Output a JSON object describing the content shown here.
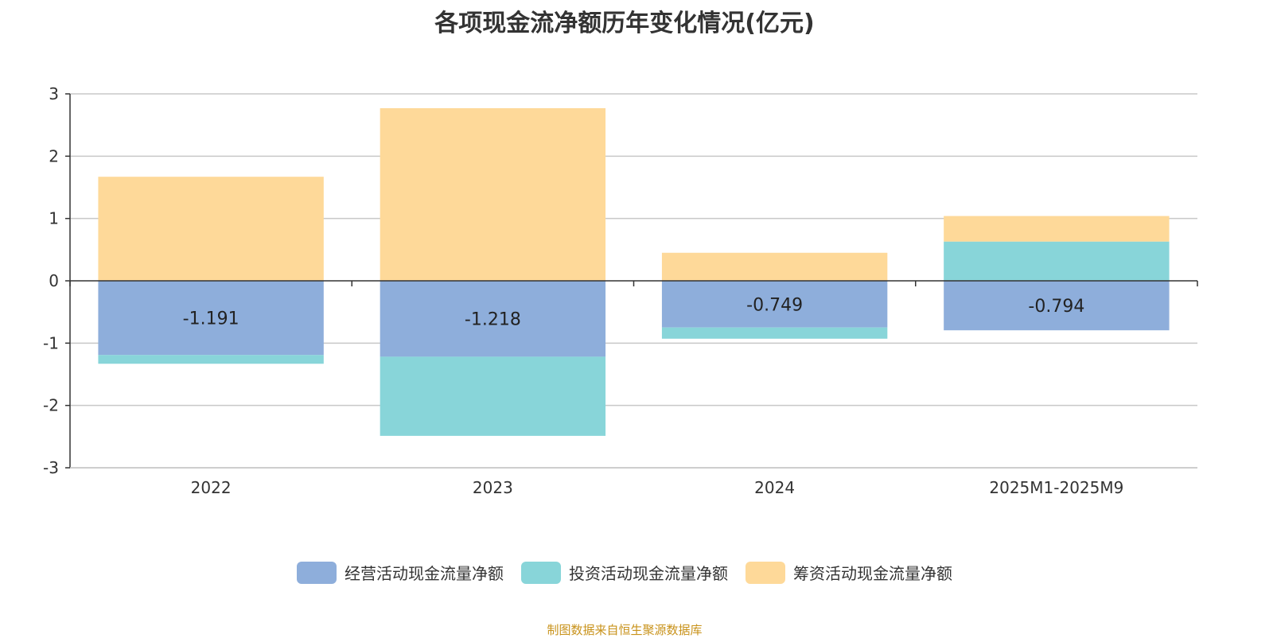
{
  "chart_data": {
    "type": "bar",
    "stacked": true,
    "title": "各项现金流净额历年变化情况(亿元)",
    "categories": [
      "2022",
      "2023",
      "2024",
      "2025M1-2025M9"
    ],
    "series": [
      {
        "name": "经营活动现金流量净额",
        "color": "#8eaedb",
        "values": [
          -1.191,
          -1.218,
          -0.749,
          -0.794
        ],
        "labels": [
          "-1.191",
          "-1.218",
          "-0.749",
          "-0.794"
        ]
      },
      {
        "name": "投资活动现金流量净额",
        "color": "#88d5d9",
        "values": [
          -0.14,
          -1.27,
          -0.18,
          0.63
        ]
      },
      {
        "name": "筹资活动现金流量净额",
        "color": "#fed999",
        "values": [
          1.67,
          2.77,
          0.45,
          0.41
        ]
      }
    ],
    "yticks": [
      "3",
      "2",
      "1",
      "0",
      "-1",
      "-2",
      "-3"
    ],
    "ylim": [
      -3,
      3
    ],
    "grid": true,
    "legend_position": "bottom"
  },
  "source": "制图数据来自恒生聚源数据库"
}
